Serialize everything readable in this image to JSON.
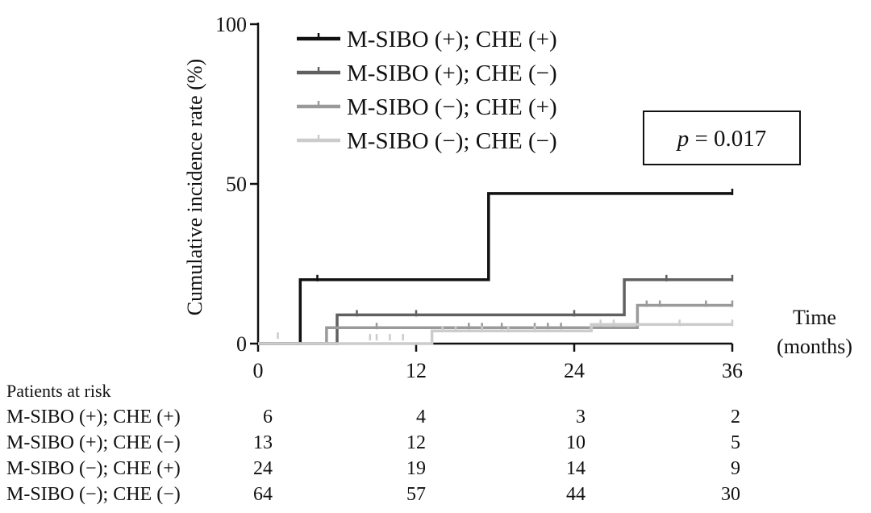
{
  "chart_data": {
    "type": "line",
    "step": true,
    "ylabel": "Cumulative incidence rate (%)",
    "xlabel": "Time\n(months)",
    "xlim": [
      0,
      36
    ],
    "ylim": [
      0,
      100
    ],
    "xticks": [
      "0",
      "12",
      "24",
      "36"
    ],
    "yticks": [
      "0",
      "50",
      "100"
    ],
    "legend_position": "top-left",
    "annotation": "p = 0.017",
    "annotation_parts": {
      "italic": "p",
      "rest": " = 0.017"
    },
    "series": [
      {
        "name": "M-SIBO  (+); CHE (+)",
        "color": "#111111",
        "points": [
          [
            0,
            0
          ],
          [
            3.2,
            0
          ],
          [
            3.2,
            20
          ],
          [
            17.5,
            20
          ],
          [
            17.5,
            47
          ],
          [
            36,
            47
          ]
        ],
        "censors": [
          [
            4.5,
            20
          ],
          [
            36,
            47
          ]
        ]
      },
      {
        "name": "M-SIBO  (+); CHE (−)",
        "color": "#606060",
        "points": [
          [
            0,
            0
          ],
          [
            1.2,
            0
          ],
          [
            1.2,
            0
          ],
          [
            6.0,
            0
          ],
          [
            6.0,
            9
          ],
          [
            27.8,
            9
          ],
          [
            27.8,
            20
          ],
          [
            36,
            20
          ]
        ],
        "censors": [
          [
            7.5,
            9
          ],
          [
            12,
            9
          ],
          [
            24,
            9
          ],
          [
            31,
            20
          ],
          [
            36,
            20
          ]
        ]
      },
      {
        "name": "M-SIBO  (−); CHE (+)",
        "color": "#9a9a9a",
        "points": [
          [
            0,
            0
          ],
          [
            5.2,
            0
          ],
          [
            5.2,
            5
          ],
          [
            28.8,
            5
          ],
          [
            28.8,
            12
          ],
          [
            36,
            12
          ]
        ],
        "censors": [
          [
            9,
            5
          ],
          [
            16,
            5
          ],
          [
            17,
            5
          ],
          [
            18.5,
            5
          ],
          [
            21,
            5
          ],
          [
            22,
            5
          ],
          [
            23,
            5
          ],
          [
            29.5,
            12
          ],
          [
            30.5,
            12
          ],
          [
            34,
            12
          ],
          [
            36,
            12
          ]
        ]
      },
      {
        "name": "M-SIBO  (−); CHE (−)",
        "color": "#cccccc",
        "points": [
          [
            0,
            0
          ],
          [
            13.2,
            0
          ],
          [
            13.2,
            4
          ],
          [
            25.3,
            4
          ],
          [
            25.3,
            6
          ],
          [
            36,
            6
          ]
        ],
        "censors": [
          [
            1.5,
            2
          ],
          [
            8.5,
            1.5
          ],
          [
            9,
            1.5
          ],
          [
            10,
            1.5
          ],
          [
            11,
            1.5
          ],
          [
            14,
            4
          ],
          [
            15,
            4
          ],
          [
            17,
            4
          ],
          [
            19,
            4
          ],
          [
            21,
            4
          ],
          [
            26,
            6
          ],
          [
            27,
            6
          ],
          [
            32,
            6
          ],
          [
            36,
            6
          ]
        ]
      }
    ]
  },
  "risk_table": {
    "title": "Patients at risk",
    "rows": [
      {
        "label": "M-SIBO  (+); CHE (+)",
        "values": [
          "6",
          "4",
          "3",
          "2"
        ]
      },
      {
        "label": "M-SIBO  (+); CHE (−)",
        "values": [
          "13",
          "12",
          "10",
          "5"
        ]
      },
      {
        "label": "M-SIBO  (−); CHE (+)",
        "values": [
          "24",
          "19",
          "14",
          "9"
        ]
      },
      {
        "label": "M-SIBO  (−); CHE (−)",
        "values": [
          "64",
          "57",
          "44",
          "30"
        ]
      }
    ]
  }
}
